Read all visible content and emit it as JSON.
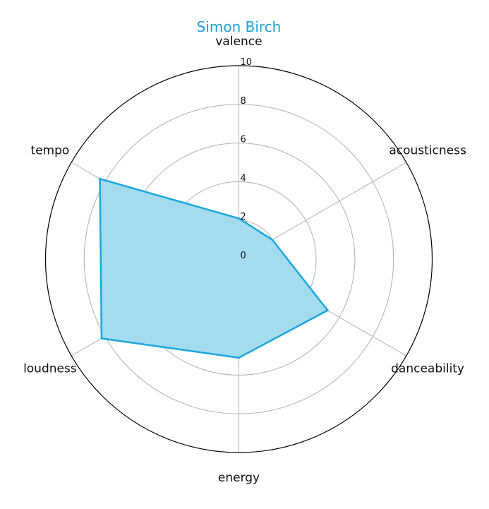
{
  "chart_data": {
    "type": "radar",
    "title": "Simon Birch",
    "axes": [
      "valence",
      "acousticness",
      "danceability",
      "energy",
      "loudness",
      "tempo"
    ],
    "series": [
      {
        "values": [
          2.1,
          2.0,
          5.3,
          5.1,
          8.2,
          8.3
        ]
      }
    ],
    "rlim": [
      0,
      10
    ],
    "rticks": [
      "0",
      "2",
      "4",
      "6",
      "8",
      "10"
    ],
    "grid": true,
    "legend": "none"
  },
  "colors": {
    "title": "#1aa3d8",
    "line": "#1aa7dd",
    "fill": "#a4dbef",
    "grid": "#b0b0b0",
    "frame": "#000000"
  }
}
